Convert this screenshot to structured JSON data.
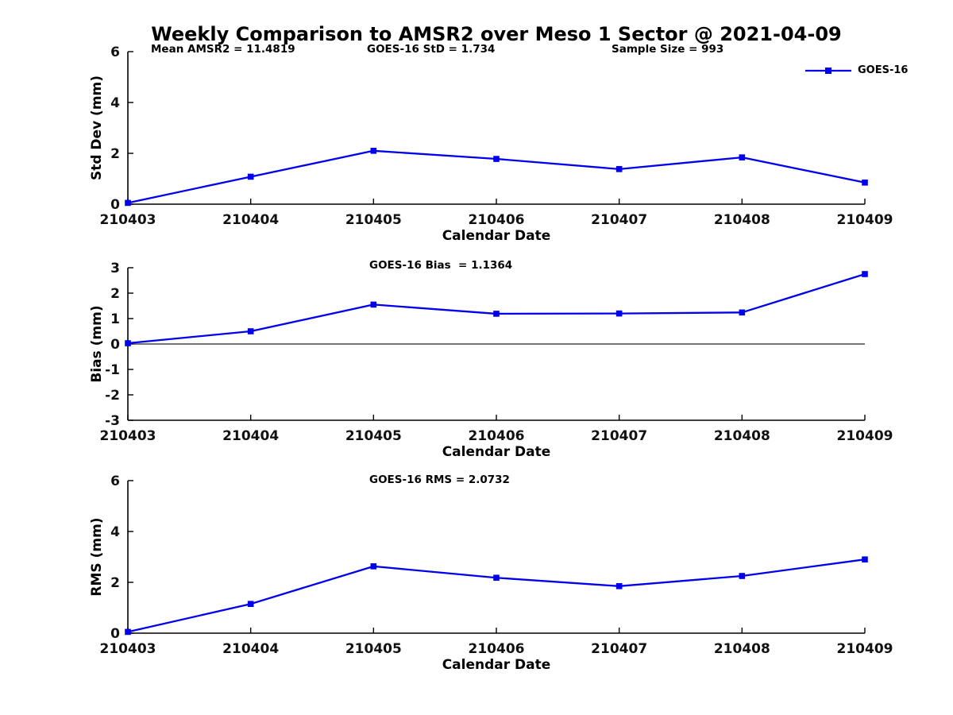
{
  "figure": {
    "title": "Weekly Comparison to AMSR2 over Meso 1 Sector @ 2021-04-09",
    "accent_color": "#0000EF",
    "axis_color": "#000000",
    "legend": {
      "label": "GOES-16",
      "marker": "filled-square",
      "position": "top-right-outside"
    }
  },
  "chart_data": [
    {
      "type": "line",
      "ylabel": "Std Dev (mm)",
      "xlabel": "Calendar Date",
      "categories": [
        "210403",
        "210404",
        "210405",
        "210406",
        "210407",
        "210408",
        "210409"
      ],
      "series": [
        {
          "name": "GOES-16",
          "values": [
            0.05,
            1.08,
            2.1,
            1.78,
            1.38,
            1.84,
            0.85
          ]
        }
      ],
      "ylim": [
        0,
        6
      ],
      "yticks": [
        0,
        2,
        4,
        6
      ],
      "grid": false,
      "zero_line": false,
      "annotations": [
        "Mean AMSR2 = 11.4819",
        "GOES-16 StD = 1.734",
        "Sample Size = 993"
      ],
      "legend": {
        "label": "GOES-16"
      }
    },
    {
      "type": "line",
      "ylabel": "Bias (mm)",
      "xlabel": "Calendar Date",
      "categories": [
        "210403",
        "210404",
        "210405",
        "210406",
        "210407",
        "210408",
        "210409"
      ],
      "series": [
        {
          "name": "GOES-16",
          "values": [
            0.03,
            0.5,
            1.55,
            1.19,
            1.2,
            1.24,
            2.75
          ]
        }
      ],
      "ylim": [
        -3,
        3
      ],
      "yticks": [
        -3,
        -2,
        -1,
        0,
        1,
        2,
        3
      ],
      "grid": false,
      "zero_line": true,
      "annotations": [
        "GOES-16 Bias  = 1.1364"
      ]
    },
    {
      "type": "line",
      "ylabel": "RMS (mm)",
      "xlabel": "Calendar Date",
      "categories": [
        "210403",
        "210404",
        "210405",
        "210406",
        "210407",
        "210408",
        "210409"
      ],
      "series": [
        {
          "name": "GOES-16",
          "values": [
            0.05,
            1.15,
            2.63,
            2.18,
            1.85,
            2.25,
            2.9
          ]
        }
      ],
      "ylim": [
        0,
        6
      ],
      "yticks": [
        0,
        2,
        4,
        6
      ],
      "grid": false,
      "zero_line": false,
      "annotations": [
        "GOES-16 RMS = 2.0732"
      ]
    }
  ]
}
